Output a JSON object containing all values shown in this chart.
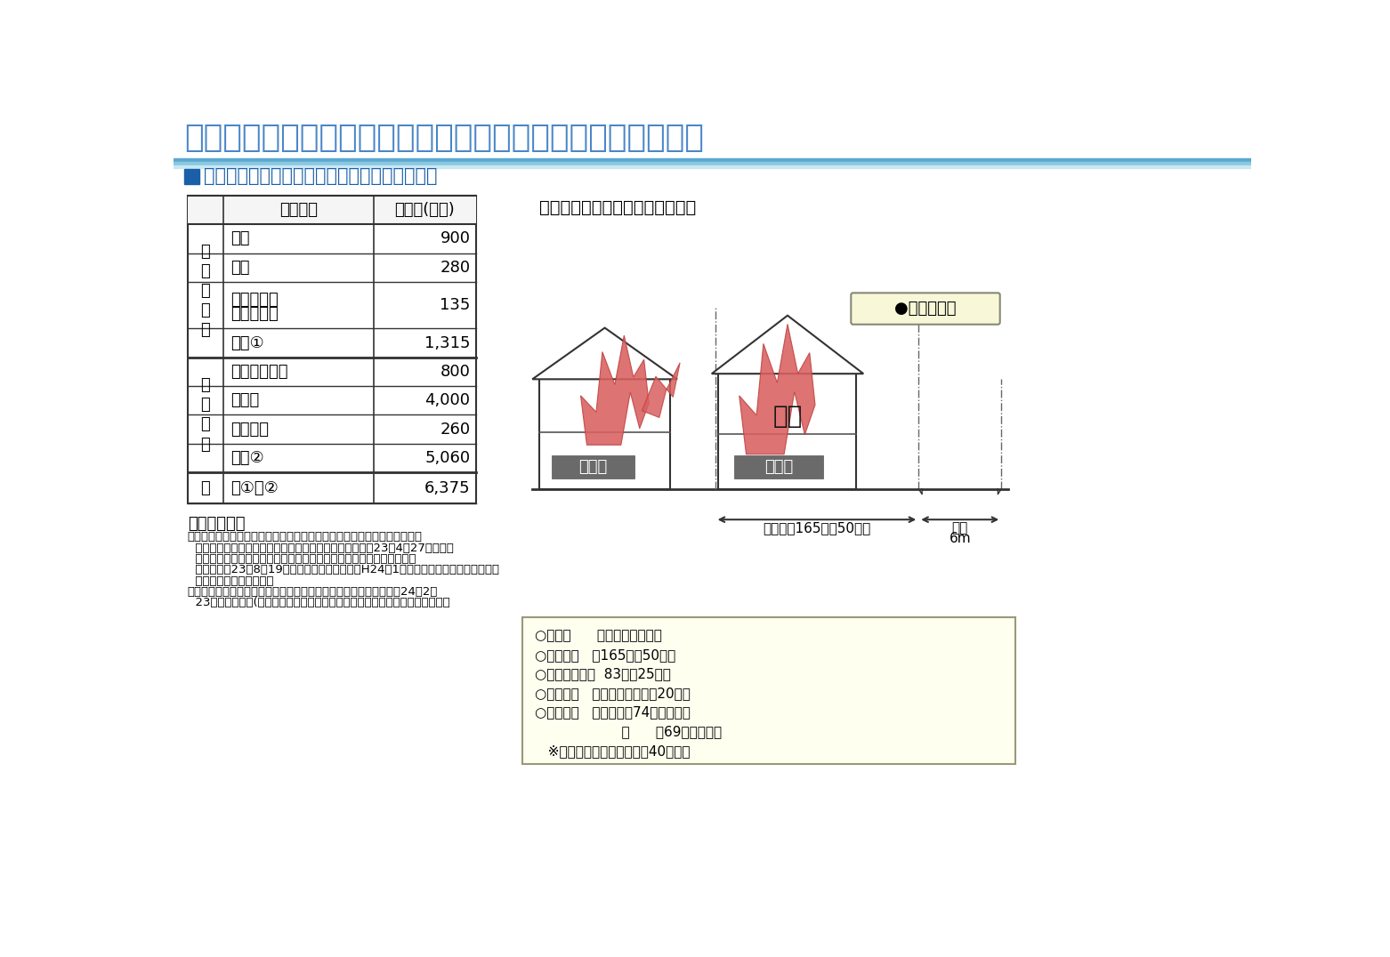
{
  "title": "空き家発生による外部不経済の損害額の試算結果（その１）",
  "subtitle": "■火災による隣接家屋の全焼・死亡事故（想定）",
  "title_color": "#4a86c8",
  "subtitle_color": "#1a5fa8",
  "subtitle_square_color": "#1a5fa8",
  "bg_color": "#ffffff",
  "title_bar_colors": [
    "#5ba8d0",
    "#8ac8e0",
    "#b8dff0"
  ],
  "table_rows": [
    [
      "住宅",
      "900"
    ],
    [
      "家財",
      "280"
    ],
    [
      "焼失家屋の\n解体・処分",
      "135"
    ],
    [
      "小計①",
      "1,315"
    ],
    [
      "死亡逸失利益",
      "800"
    ],
    [
      "慰謝料",
      "4,000"
    ],
    [
      "葬儀費用",
      "260"
    ],
    [
      "小計②",
      "5,060"
    ],
    [
      "計①＋②",
      "6,375"
    ]
  ],
  "cat1_label": "物\n件\n損\n害\n等",
  "cat2_label": "人\n身\n損\n害",
  "cat3_label": "合",
  "diagram_title": "【試算の前提とした被害モデル】",
  "label_akiya": "空き家",
  "label_tonariya": "隣　家",
  "label_zensho": "全焼",
  "label_shibo": "●死亡：夫婦",
  "label_shikichi": "敷地面積165㎡（50坪）",
  "label_doro_1": "道路",
  "label_doro_2": "6m",
  "info_box_lines": [
    "○所在地      ：東京都（郊外）",
    "○敷地面積   ：165㎡（50坪）",
    "○延べ床面積：  83㎡（25坪）",
    "○建築時期   ：平成４年（築後20年）",
    "○居住世帯   ：世帯主：74歳（無職）",
    "                    妻      ：69歳（無職）",
    "   ※夫婦の何れも国民年金を40年完納"
  ],
  "calc_method_title": "【試算方法】",
  "calc_method_lines": [
    "・物件損害は、国税庁の指示文書「東日本大震災に係る雑損控除の適用に",
    "  おける（損出額の合理的な計算方法について）」（平成23年4月27日）や環",
    "  境省の「廃棄物処理費の算定基準、倒壊家屋等の解体工事費の算定基",
    "  準」（平成23年8月19日）、「建設施工単価（H24年1月）」（（一財）経済調査会）",
    "  等に基づき、独自に試算",
    "・人身損害は、「交通事故損害算定基準－実務運用と解説－（平成24年2月",
    "  23日改訂）」（(財）日弁連交通事故相談センター）等に基づき、独自に試算"
  ]
}
